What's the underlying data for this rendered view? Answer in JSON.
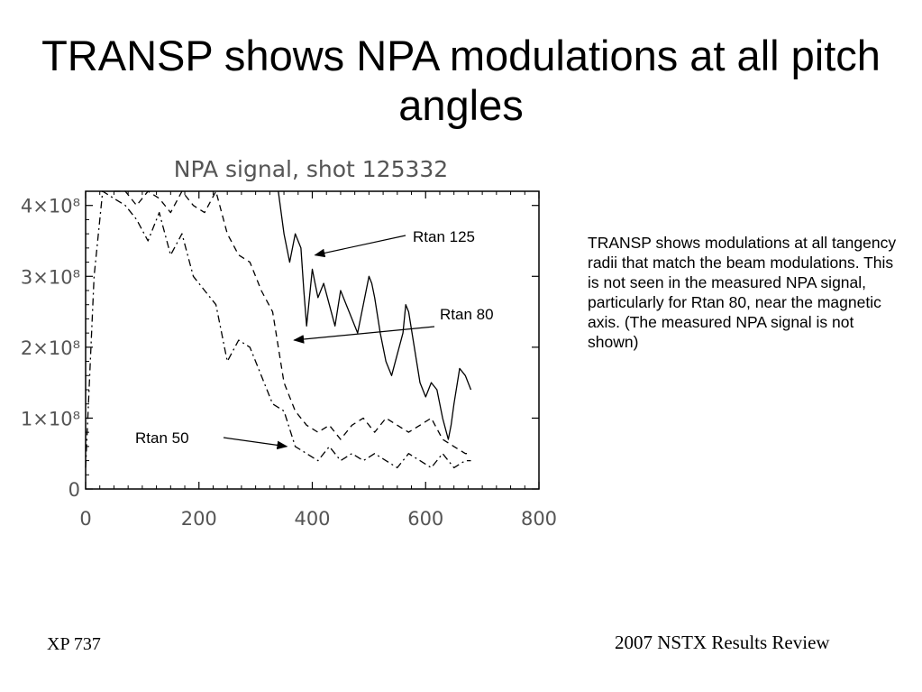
{
  "slide": {
    "title": "TRANSP shows NPA modulations at all pitch angles",
    "note": "TRANSP shows modulations at all tangency radii that match the beam modulations.  This is not seen in the measured NPA signal, particularly for Rtan 80, near the magnetic axis. (The measured NPA signal is not shown)",
    "footer_left": "XP 737",
    "footer_right": "2007 NSTX Results Review"
  },
  "chart_data": {
    "type": "line",
    "title": "NPA signal, shot 125332",
    "xlabel": "",
    "ylabel": "",
    "xlim": [
      0,
      800
    ],
    "ylim": [
      0,
      420000000.0
    ],
    "x_ticks": [
      0,
      200,
      400,
      600,
      800
    ],
    "y_ticks": [
      {
        "value": 0,
        "label": "0"
      },
      {
        "value": 100000000.0,
        "label": "1×10⁸"
      },
      {
        "value": 200000000.0,
        "label": "2×10⁸"
      },
      {
        "value": 300000000.0,
        "label": "3×10⁸"
      },
      {
        "value": 400000000.0,
        "label": "4×10⁸"
      }
    ],
    "annotations": [
      {
        "text": "Rtan 125",
        "series": 0,
        "arrow_to": [
          405,
          330000000.0
        ]
      },
      {
        "text": "Rtan 80",
        "series": 1,
        "arrow_to": [
          368,
          210000000.0
        ]
      },
      {
        "text": "Rtan 50",
        "series": 2,
        "arrow_to": [
          355,
          60000000.0
        ]
      }
    ],
    "series": [
      {
        "name": "Rtan 125",
        "style": "solid",
        "x": [
          340,
          350,
          360,
          370,
          380,
          385,
          390,
          400,
          405,
          410,
          420,
          430,
          440,
          450,
          460,
          470,
          480,
          490,
          500,
          505,
          510,
          520,
          530,
          540,
          550,
          560,
          565,
          570,
          580,
          590,
          600,
          610,
          620,
          630,
          640,
          645,
          650,
          660,
          670,
          680
        ],
        "y": [
          420000000.0,
          360000000.0,
          320000000.0,
          360000000.0,
          340000000.0,
          280000000.0,
          230000000.0,
          310000000.0,
          290000000.0,
          270000000.0,
          290000000.0,
          260000000.0,
          230000000.0,
          280000000.0,
          260000000.0,
          240000000.0,
          220000000.0,
          260000000.0,
          300000000.0,
          290000000.0,
          270000000.0,
          220000000.0,
          180000000.0,
          160000000.0,
          190000000.0,
          220000000.0,
          260000000.0,
          250000000.0,
          200000000.0,
          150000000.0,
          130000000.0,
          150000000.0,
          140000000.0,
          100000000.0,
          70000000.0,
          90000000.0,
          120000000.0,
          170000000.0,
          160000000.0,
          140000000.0
        ]
      },
      {
        "name": "Rtan 80",
        "style": "dashed",
        "x": [
          50,
          70,
          90,
          110,
          130,
          150,
          170,
          190,
          210,
          230,
          250,
          270,
          290,
          310,
          330,
          350,
          370,
          390,
          410,
          430,
          450,
          470,
          490,
          510,
          530,
          550,
          570,
          590,
          610,
          630,
          650,
          670,
          680
        ],
        "y": [
          420000000.0,
          420000000.0,
          400000000.0,
          420000000.0,
          410000000.0,
          390000000.0,
          420000000.0,
          400000000.0,
          390000000.0,
          420000000.0,
          360000000.0,
          330000000.0,
          320000000.0,
          280000000.0,
          250000000.0,
          150000000.0,
          110000000.0,
          90000000.0,
          80000000.0,
          90000000.0,
          70000000.0,
          90000000.0,
          100000000.0,
          80000000.0,
          100000000.0,
          90000000.0,
          80000000.0,
          90000000.0,
          100000000.0,
          70000000.0,
          60000000.0,
          50000000.0,
          50000000.0
        ]
      },
      {
        "name": "Rtan 50",
        "style": "dashdot",
        "x": [
          0,
          15,
          30,
          50,
          70,
          90,
          110,
          130,
          150,
          170,
          190,
          210,
          230,
          250,
          270,
          290,
          310,
          330,
          350,
          370,
          390,
          410,
          430,
          450,
          470,
          490,
          510,
          530,
          550,
          570,
          590,
          610,
          630,
          650,
          670,
          680
        ],
        "y": [
          30000000.0,
          300000000.0,
          420000000.0,
          410000000.0,
          400000000.0,
          380000000.0,
          350000000.0,
          390000000.0,
          330000000.0,
          360000000.0,
          300000000.0,
          280000000.0,
          260000000.0,
          180000000.0,
          210000000.0,
          200000000.0,
          160000000.0,
          120000000.0,
          110000000.0,
          60000000.0,
          50000000.0,
          40000000.0,
          60000000.0,
          40000000.0,
          50000000.0,
          40000000.0,
          50000000.0,
          40000000.0,
          30000000.0,
          50000000.0,
          40000000.0,
          30000000.0,
          50000000.0,
          30000000.0,
          40000000.0,
          40000000.0
        ]
      }
    ]
  }
}
